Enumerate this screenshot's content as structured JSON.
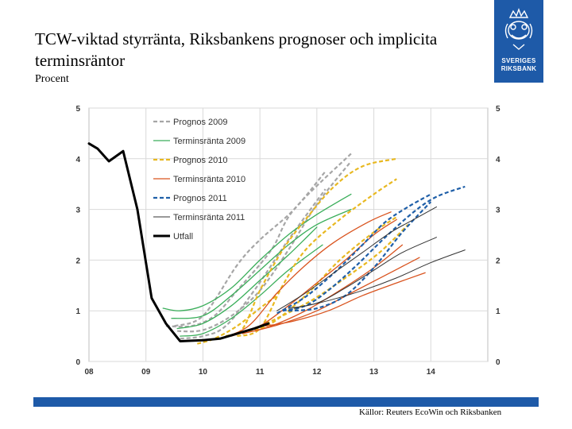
{
  "title": "TCW-viktad styrränta, Riksbankens prognoser och implicita terminsräntor",
  "subtitle": "Procent",
  "source": "Källor: Reuters EcoWin och Riksbanken",
  "logo": {
    "line1": "SVERIGES",
    "line2": "RIKSBANK",
    "color": "#1e5aa8"
  },
  "chart_data": {
    "type": "line",
    "title": "TCW-viktad styrränta, Riksbankens prognoser och implicita terminsräntor",
    "ylabel": "Procent",
    "xlim": [
      2008,
      2015
    ],
    "ylim": [
      0,
      5
    ],
    "x_ticks": [
      "08",
      "09",
      "10",
      "11",
      "12",
      "13",
      "14"
    ],
    "x_tick_values": [
      2008,
      2009,
      2010,
      2011,
      2012,
      2013,
      2014
    ],
    "y_ticks_left": [
      "0",
      "1",
      "2",
      "3",
      "4",
      "5"
    ],
    "y_ticks_right": [
      "0",
      "1",
      "2",
      "3",
      "4",
      "5"
    ],
    "y_tick_values": [
      0,
      1,
      2,
      3,
      4,
      5
    ],
    "legend": [
      {
        "label": "Prognos 2009",
        "color": "#a6a6a6",
        "dash": true,
        "width": 2.2
      },
      {
        "label": "Terminsränta 2009",
        "color": "#3aae5a",
        "dash": false,
        "width": 1.3
      },
      {
        "label": "Prognos 2010",
        "color": "#e8b820",
        "dash": true,
        "width": 2.2
      },
      {
        "label": "Terminsränta 2010",
        "color": "#d9531e",
        "dash": false,
        "width": 1.3
      },
      {
        "label": "Prognos 2011",
        "color": "#1f5fa8",
        "dash": true,
        "width": 2.2
      },
      {
        "label": "Terminsränta 2011",
        "color": "#333333",
        "dash": false,
        "width": 1.0
      },
      {
        "label": "Utfall",
        "color": "#000000",
        "dash": false,
        "width": 3
      }
    ],
    "series": [
      {
        "name": "Utfall",
        "color": "#000000",
        "dash": false,
        "width": 3,
        "x": [
          2008.0,
          2008.15,
          2008.35,
          2008.6,
          2008.85,
          2009.1,
          2009.35,
          2009.6,
          2010.0,
          2010.3,
          2010.6,
          2010.9,
          2011.15
        ],
        "y": [
          4.3,
          4.2,
          3.95,
          4.15,
          3.0,
          1.25,
          0.75,
          0.4,
          0.42,
          0.45,
          0.55,
          0.65,
          0.75
        ]
      },
      {
        "name": "Prognos 2009",
        "color": "#a6a6a6",
        "dash": true,
        "width": 2.2,
        "x": [
          2009.35,
          2009.8,
          2010.2,
          2010.6,
          2011.2,
          2011.6,
          2012.6
        ],
        "y": [
          0.7,
          0.7,
          0.9,
          1.4,
          2.2,
          3.0,
          4.1
        ]
      },
      {
        "name": "Prognos 2009",
        "color": "#a6a6a6",
        "dash": true,
        "width": 2.2,
        "x": [
          2009.5,
          2010.0,
          2010.6,
          2011.0,
          2011.6,
          2012.15
        ],
        "y": [
          0.7,
          0.9,
          1.9,
          2.4,
          3.0,
          3.75
        ]
      },
      {
        "name": "Prognos 2009",
        "color": "#a6a6a6",
        "dash": true,
        "width": 2.2,
        "x": [
          2009.55,
          2010.0,
          2010.5,
          2011.0,
          2011.5,
          2012.0,
          2012.6
        ],
        "y": [
          0.6,
          0.62,
          0.9,
          1.4,
          2.2,
          3.1,
          3.95
        ]
      },
      {
        "name": "Prognos 2009",
        "color": "#a6a6a6",
        "dash": true,
        "width": 2.2,
        "x": [
          2009.6,
          2010.0,
          2010.4,
          2010.9,
          2011.5,
          2012.15
        ],
        "y": [
          0.45,
          0.5,
          0.7,
          1.4,
          2.4,
          3.4
        ]
      },
      {
        "name": "Terminsränta 2009",
        "color": "#3aae5a",
        "dash": false,
        "width": 1.3,
        "x": [
          2009.3,
          2009.6,
          2010.0,
          2010.5,
          2011.0,
          2011.5,
          2012.0,
          2012.6
        ],
        "y": [
          1.05,
          1.0,
          1.1,
          1.45,
          2.0,
          2.5,
          2.9,
          3.3
        ]
      },
      {
        "name": "Terminsränta 2009",
        "color": "#3aae5a",
        "dash": false,
        "width": 1.3,
        "x": [
          2009.45,
          2010.0,
          2010.5,
          2011.0,
          2011.5,
          2012.0,
          2012.6
        ],
        "y": [
          0.85,
          0.9,
          1.3,
          1.8,
          2.3,
          2.7,
          3.0
        ]
      },
      {
        "name": "Terminsränta 2009",
        "color": "#3aae5a",
        "dash": false,
        "width": 1.3,
        "x": [
          2009.55,
          2010.0,
          2010.5,
          2011.0,
          2011.5,
          2012.0
        ],
        "y": [
          0.65,
          0.75,
          1.1,
          1.6,
          2.1,
          2.65
        ]
      },
      {
        "name": "Terminsränta 2009",
        "color": "#3aae5a",
        "dash": false,
        "width": 1.3,
        "x": [
          2009.6,
          2010.0,
          2010.5,
          2011.0,
          2011.5,
          2012.1
        ],
        "y": [
          0.5,
          0.55,
          0.85,
          1.3,
          1.8,
          2.3
        ]
      },
      {
        "name": "Prognos 2010",
        "color": "#e8b820",
        "dash": true,
        "width": 2.2,
        "x": [
          2010.4,
          2010.7,
          2011.0,
          2011.4,
          2011.8,
          2012.3,
          2012.8,
          2013.4
        ],
        "y": [
          0.5,
          0.65,
          1.4,
          2.2,
          2.8,
          3.45,
          3.85,
          4.0
        ]
      },
      {
        "name": "Prognos 2010",
        "color": "#e8b820",
        "dash": true,
        "width": 2.2,
        "x": [
          2010.6,
          2011.0,
          2011.4,
          2011.8,
          2012.4,
          2013.0,
          2013.4
        ],
        "y": [
          0.5,
          0.65,
          1.5,
          2.2,
          2.8,
          3.3,
          3.6
        ]
      },
      {
        "name": "Prognos 2010",
        "color": "#e8b820",
        "dash": true,
        "width": 2.2,
        "x": [
          2010.8,
          2011.2,
          2011.8,
          2012.4,
          2013.0,
          2013.4
        ],
        "y": [
          0.6,
          0.75,
          1.3,
          2.0,
          2.55,
          2.85
        ]
      },
      {
        "name": "Prognos 2010",
        "color": "#e8b820",
        "dash": true,
        "width": 2.2,
        "x": [
          2010.9,
          2011.3,
          2011.9,
          2012.5,
          2013.1,
          2013.6
        ],
        "y": [
          0.65,
          0.85,
          1.2,
          1.65,
          2.15,
          2.7
        ]
      },
      {
        "name": "Prognos 2010",
        "color": "#e8b820",
        "dash": true,
        "width": 2.2,
        "x": [
          2009.9,
          2010.2,
          2010.6,
          2011.0,
          2011.3
        ],
        "y": [
          0.35,
          0.45,
          0.7,
          1.05,
          1.3
        ]
      },
      {
        "name": "Terminsränta 2010",
        "color": "#d9531e",
        "dash": false,
        "width": 1.3,
        "x": [
          2010.3,
          2010.8,
          2011.3,
          2011.8,
          2012.3,
          2012.9,
          2013.3
        ],
        "y": [
          0.45,
          0.7,
          1.35,
          1.9,
          2.35,
          2.75,
          2.95
        ]
      },
      {
        "name": "Terminsränta 2010",
        "color": "#d9531e",
        "dash": false,
        "width": 1.3,
        "x": [
          2010.5,
          2011.0,
          2011.5,
          2012.0,
          2012.5,
          2013.0,
          2013.4
        ],
        "y": [
          0.5,
          0.7,
          1.1,
          1.55,
          2.0,
          2.5,
          2.8
        ]
      },
      {
        "name": "Terminsränta 2010",
        "color": "#d9531e",
        "dash": false,
        "width": 1.3,
        "x": [
          2010.7,
          2011.2,
          2011.8,
          2012.4,
          2013.0,
          2013.5
        ],
        "y": [
          0.55,
          0.7,
          1.0,
          1.4,
          1.85,
          2.3
        ]
      },
      {
        "name": "Terminsränta 2010",
        "color": "#d9531e",
        "dash": false,
        "width": 1.3,
        "x": [
          2010.9,
          2011.4,
          2012.0,
          2012.6,
          2013.2,
          2013.8
        ],
        "y": [
          0.6,
          0.75,
          1.0,
          1.35,
          1.7,
          2.05
        ]
      },
      {
        "name": "Terminsränta 2010",
        "color": "#d9531e",
        "dash": false,
        "width": 1.3,
        "x": [
          2011.1,
          2011.6,
          2012.2,
          2012.8,
          2013.4,
          2013.9
        ],
        "y": [
          0.7,
          0.8,
          1.0,
          1.3,
          1.55,
          1.75
        ]
      },
      {
        "name": "Prognos 2011",
        "color": "#1f5fa8",
        "dash": true,
        "width": 2.2,
        "x": [
          2011.3,
          2011.7,
          2012.0,
          2012.4,
          2012.8,
          2013.2,
          2013.6,
          2014.0
        ],
        "y": [
          0.95,
          1.2,
          1.45,
          1.85,
          2.3,
          2.75,
          3.05,
          3.3
        ]
      },
      {
        "name": "Prognos 2011",
        "color": "#1f5fa8",
        "dash": true,
        "width": 2.2,
        "x": [
          2011.4,
          2011.8,
          2012.2,
          2012.7,
          2013.2,
          2013.7,
          2014.1,
          2014.6
        ],
        "y": [
          1.0,
          1.1,
          1.4,
          1.9,
          2.45,
          2.95,
          3.25,
          3.45
        ]
      },
      {
        "name": "Prognos 2011",
        "color": "#1f5fa8",
        "dash": true,
        "width": 2.2,
        "x": [
          2011.5,
          2012.0,
          2012.5,
          2013.0,
          2013.5,
          2014.0
        ],
        "y": [
          1.0,
          1.05,
          1.3,
          1.85,
          2.55,
          3.15
        ]
      },
      {
        "name": "Terminsränta 2011",
        "color": "#333333",
        "dash": false,
        "width": 1.0,
        "x": [
          2011.3,
          2011.8,
          2012.3,
          2012.8,
          2013.3,
          2013.7,
          2014.1
        ],
        "y": [
          1.0,
          1.35,
          1.75,
          2.15,
          2.55,
          2.8,
          3.05
        ]
      },
      {
        "name": "Terminsränta 2011",
        "color": "#333333",
        "dash": false,
        "width": 1.0,
        "x": [
          2011.5,
          2012.0,
          2012.5,
          2013.0,
          2013.5,
          2014.1
        ],
        "y": [
          1.05,
          1.15,
          1.45,
          1.8,
          2.15,
          2.45
        ]
      },
      {
        "name": "Terminsränta 2011",
        "color": "#333333",
        "dash": false,
        "width": 1.0,
        "x": [
          2011.6,
          2012.2,
          2012.8,
          2013.4,
          2014.0,
          2014.6
        ],
        "y": [
          1.05,
          1.2,
          1.4,
          1.65,
          1.95,
          2.2
        ]
      }
    ]
  }
}
